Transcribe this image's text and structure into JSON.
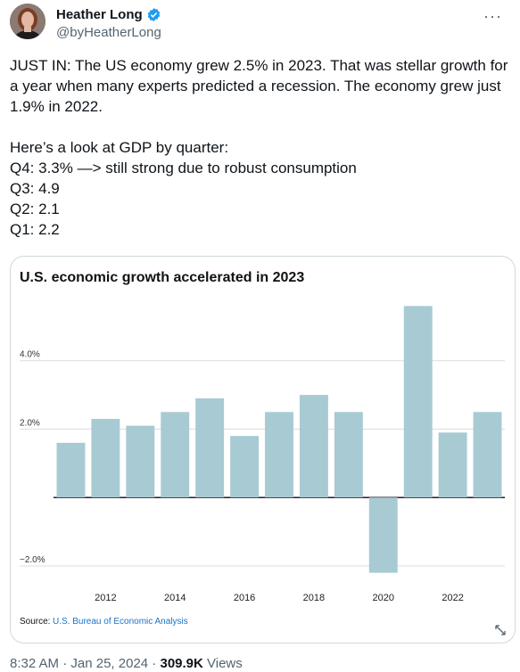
{
  "author": {
    "name": "Heather Long",
    "handle": "@byHeatherLong",
    "more_icon": "more-horizontal-icon"
  },
  "tweet": {
    "text": "JUST IN: The US economy grew 2.5% in 2023. That was stellar growth for a year when many experts predicted a recession. The economy grew just 1.9% in 2022.\n\nHere’s a look at GDP by quarter:\nQ4: 3.3% —> still strong due to robust consumption\nQ3: 4.9\nQ2: 2.1\nQ1: 2.2"
  },
  "meta": {
    "time": "8:32 AM",
    "sep1": " · ",
    "date": "Jan 25, 2024",
    "sep2": " · ",
    "views": "309.9K",
    "views_label": " Views"
  },
  "colors": {
    "bar": "#a8cad3",
    "link": "#1d9bf0"
  },
  "chart_data": {
    "type": "bar",
    "title": "U.S. economic growth accelerated in 2023",
    "categories": [
      "2011",
      "2012",
      "2013",
      "2014",
      "2015",
      "2016",
      "2017",
      "2018",
      "2019",
      "2020",
      "2021",
      "2022",
      "2023"
    ],
    "values": [
      1.6,
      2.3,
      2.1,
      2.5,
      2.9,
      1.8,
      2.5,
      3.0,
      2.5,
      -2.2,
      5.6,
      1.9,
      2.5
    ],
    "x_tick_labels": [
      "2012",
      "2014",
      "2016",
      "2018",
      "2020",
      "2022"
    ],
    "y_ticks": [
      {
        "value": 4,
        "label": "4.0%"
      },
      {
        "value": 2,
        "label": "2.0%"
      },
      {
        "value": -2,
        "label": "−2.0%"
      }
    ],
    "ylim": [
      -2.6,
      6.0
    ],
    "grid": true,
    "source_label": "Source:",
    "source": "U.S. Bureau of Economic Analysis"
  }
}
